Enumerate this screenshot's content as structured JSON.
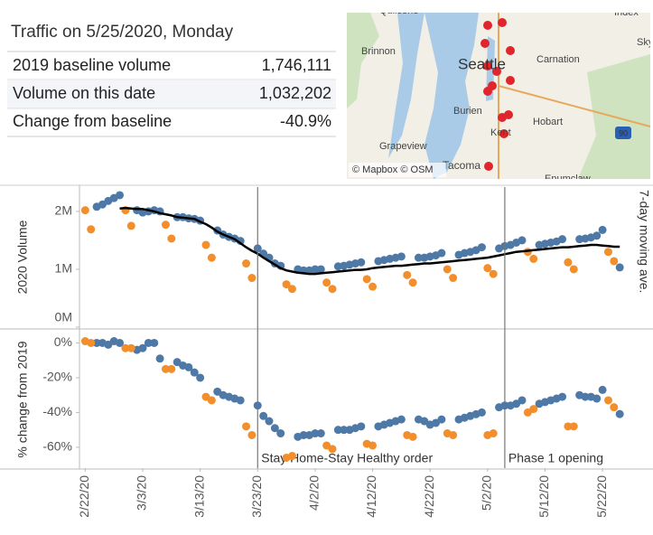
{
  "title": "Traffic on 5/25/2020, Monday",
  "table": {
    "rows": [
      [
        "2019 baseline volume",
        "1,746,111"
      ],
      [
        "Volume on this date",
        "1,032,202"
      ],
      [
        "Change from baseline",
        "-40.9%"
      ]
    ]
  },
  "map": {
    "labels": [
      "Quilcene",
      "Brinnon",
      "Seattle",
      "Carnation",
      "Burien",
      "Hobart",
      "Kent",
      "Grapeview",
      "Tacoma",
      "Enumclaw",
      "Index",
      "Sky",
      "90"
    ],
    "attribution": "© Mapbox © OSM"
  },
  "chart_data": [
    {
      "type": "line",
      "y_label": "2020 Volume",
      "x": [
        "2/22/20",
        "2/23/20",
        "2/24/20",
        "2/25/20",
        "2/26/20",
        "2/27/20",
        "2/28/20",
        "2/29/20",
        "3/1/20",
        "3/2/20",
        "3/3/20",
        "3/4/20",
        "3/5/20",
        "3/6/20",
        "3/7/20",
        "3/8/20",
        "3/9/20",
        "3/10/20",
        "3/11/20",
        "3/12/20",
        "3/13/20",
        "3/14/20",
        "3/15/20",
        "3/16/20",
        "3/17/20",
        "3/18/20",
        "3/19/20",
        "3/20/20",
        "3/21/20",
        "3/22/20",
        "3/23/20",
        "3/24/20",
        "3/25/20",
        "3/26/20",
        "3/27/20",
        "3/28/20",
        "3/29/20",
        "3/30/20",
        "3/31/20",
        "4/1/20",
        "4/2/20",
        "4/3/20",
        "4/4/20",
        "4/5/20",
        "4/6/20",
        "4/7/20",
        "4/8/20",
        "4/9/20",
        "4/10/20",
        "4/11/20",
        "4/12/20",
        "4/13/20",
        "4/14/20",
        "4/15/20",
        "4/16/20",
        "4/17/20",
        "4/18/20",
        "4/19/20",
        "4/20/20",
        "4/21/20",
        "4/22/20",
        "4/23/20",
        "4/24/20",
        "4/25/20",
        "4/26/20",
        "4/27/20",
        "4/28/20",
        "4/29/20",
        "4/30/20",
        "5/1/20",
        "5/2/20",
        "5/3/20",
        "5/4/20",
        "5/5/20",
        "5/6/20",
        "5/7/20",
        "5/8/20",
        "5/9/20",
        "5/10/20",
        "5/11/20",
        "5/12/20",
        "5/13/20",
        "5/14/20",
        "5/15/20",
        "5/16/20",
        "5/17/20",
        "5/18/20",
        "5/19/20",
        "5/20/20",
        "5/21/20",
        "5/22/20",
        "5/23/20",
        "5/24/20",
        "5/25/20"
      ],
      "xlim": [
        "2/21/20",
        "5/30/20"
      ],
      "ylim": [
        0,
        2420000
      ],
      "yticks": [
        {
          "value": 0,
          "label": "0M"
        },
        {
          "value": 1000000,
          "label": "1M"
        },
        {
          "value": 2000000,
          "label": "2M"
        }
      ],
      "grid": false,
      "series": [
        {
          "style": "dots",
          "color": "#4e79a7",
          "values": [
            null,
            null,
            2080000,
            2120000,
            2180000,
            2230000,
            2280000,
            null,
            null,
            2020000,
            1980000,
            2000000,
            2020000,
            2000000,
            null,
            null,
            1900000,
            1900000,
            1880000,
            1870000,
            1840000,
            null,
            null,
            1670000,
            1600000,
            1560000,
            1530000,
            1490000,
            null,
            null,
            1360000,
            1270000,
            1200000,
            1100000,
            1060000,
            null,
            null,
            1000000,
            980000,
            980000,
            1000000,
            1000000,
            null,
            null,
            1050000,
            1060000,
            1080000,
            1100000,
            1120000,
            null,
            null,
            1140000,
            1160000,
            1180000,
            1200000,
            1220000,
            null,
            null,
            1200000,
            1200000,
            1220000,
            1240000,
            1280000,
            null,
            null,
            1250000,
            1280000,
            1300000,
            1330000,
            1380000,
            null,
            null,
            1360000,
            1400000,
            1420000,
            1460000,
            1500000,
            null,
            null,
            1420000,
            1440000,
            1460000,
            1480000,
            1520000,
            null,
            null,
            1520000,
            1530000,
            1550000,
            1580000,
            1680000,
            null,
            null,
            1032202
          ]
        },
        {
          "style": "dots",
          "color": "#f28e2b",
          "values": [
            2020000,
            1690000,
            null,
            null,
            null,
            null,
            null,
            2020000,
            1750000,
            null,
            null,
            null,
            null,
            null,
            1770000,
            1530000,
            null,
            null,
            null,
            null,
            null,
            1420000,
            1200000,
            null,
            null,
            null,
            null,
            null,
            1100000,
            850000,
            null,
            null,
            null,
            null,
            null,
            740000,
            660000,
            null,
            null,
            null,
            null,
            null,
            770000,
            660000,
            null,
            null,
            null,
            null,
            null,
            830000,
            700000,
            null,
            null,
            null,
            null,
            null,
            900000,
            770000,
            null,
            null,
            null,
            null,
            null,
            1000000,
            850000,
            null,
            null,
            null,
            null,
            null,
            1020000,
            920000,
            null,
            null,
            null,
            null,
            null,
            1300000,
            1180000,
            null,
            null,
            null,
            null,
            null,
            1120000,
            1000000,
            null,
            null,
            null,
            null,
            null,
            1300000,
            1140000,
            null
          ]
        },
        {
          "style": "line",
          "name": "7-day moving ave.",
          "color": "#000000",
          "values": [
            null,
            null,
            null,
            null,
            null,
            null,
            2050000,
            2060000,
            2050000,
            2040000,
            2040000,
            2020000,
            2000000,
            1970000,
            1950000,
            1930000,
            1900000,
            1890000,
            1880000,
            1870000,
            1820000,
            1780000,
            1720000,
            1650000,
            1600000,
            1560000,
            1520000,
            1450000,
            1380000,
            1320000,
            1270000,
            1200000,
            1140000,
            1080000,
            1020000,
            980000,
            960000,
            940000,
            930000,
            920000,
            920000,
            930000,
            940000,
            950000,
            960000,
            970000,
            980000,
            990000,
            990000,
            1000000,
            1020000,
            1030000,
            1040000,
            1050000,
            1060000,
            1060000,
            1070000,
            1080000,
            1090000,
            1100000,
            1100000,
            1110000,
            1120000,
            1130000,
            1140000,
            1150000,
            1160000,
            1170000,
            1180000,
            1190000,
            1200000,
            1220000,
            1240000,
            1260000,
            1280000,
            1300000,
            1310000,
            1320000,
            1330000,
            1340000,
            1350000,
            1360000,
            1370000,
            1380000,
            1380000,
            1390000,
            1400000,
            1410000,
            1420000,
            1420000,
            1410000,
            1400000,
            1390000,
            1390000
          ]
        }
      ]
    },
    {
      "type": "scatter",
      "y_label": "% change from 2019",
      "x": [
        "2/22/20",
        "2/23/20",
        "2/24/20",
        "2/25/20",
        "2/26/20",
        "2/27/20",
        "2/28/20",
        "2/29/20",
        "3/1/20",
        "3/2/20",
        "3/3/20",
        "3/4/20",
        "3/5/20",
        "3/6/20",
        "3/7/20",
        "3/8/20",
        "3/9/20",
        "3/10/20",
        "3/11/20",
        "3/12/20",
        "3/13/20",
        "3/14/20",
        "3/15/20",
        "3/16/20",
        "3/17/20",
        "3/18/20",
        "3/19/20",
        "3/20/20",
        "3/21/20",
        "3/22/20",
        "3/23/20",
        "3/24/20",
        "3/25/20",
        "3/26/20",
        "3/27/20",
        "3/28/20",
        "3/29/20",
        "3/30/20",
        "3/31/20",
        "4/1/20",
        "4/2/20",
        "4/3/20",
        "4/4/20",
        "4/5/20",
        "4/6/20",
        "4/7/20",
        "4/8/20",
        "4/9/20",
        "4/10/20",
        "4/11/20",
        "4/12/20",
        "4/13/20",
        "4/14/20",
        "4/15/20",
        "4/16/20",
        "4/17/20",
        "4/18/20",
        "4/19/20",
        "4/20/20",
        "4/21/20",
        "4/22/20",
        "4/23/20",
        "4/24/20",
        "4/25/20",
        "4/26/20",
        "4/27/20",
        "4/28/20",
        "4/29/20",
        "4/30/20",
        "5/1/20",
        "5/2/20",
        "5/3/20",
        "5/4/20",
        "5/5/20",
        "5/6/20",
        "5/7/20",
        "5/8/20",
        "5/9/20",
        "5/10/20",
        "5/11/20",
        "5/12/20",
        "5/13/20",
        "5/14/20",
        "5/15/20",
        "5/16/20",
        "5/17/20",
        "5/18/20",
        "5/19/20",
        "5/20/20",
        "5/21/20",
        "5/22/20",
        "5/23/20",
        "5/24/20",
        "5/25/20"
      ],
      "xlim": [
        "2/21/20",
        "5/30/20"
      ],
      "xticks": [
        "2/22/20",
        "3/3/20",
        "3/13/20",
        "3/23/20",
        "4/2/20",
        "4/12/20",
        "4/22/20",
        "5/2/20",
        "5/12/20",
        "5/22/20"
      ],
      "ylim": [
        -72,
        7
      ],
      "yticks": [
        {
          "value": -60,
          "label": "-60%"
        },
        {
          "value": -40,
          "label": "-40%"
        },
        {
          "value": -20,
          "label": "-20%"
        },
        {
          "value": 0,
          "label": "0%"
        }
      ],
      "grid": false,
      "annotations": [
        {
          "x": "3/23/20",
          "text": "Stay Home-Stay Healthy order"
        },
        {
          "x": "5/5/20",
          "text": "Phase 1 opening"
        }
      ],
      "series": [
        {
          "style": "dots",
          "color": "#4e79a7",
          "values": [
            null,
            null,
            0,
            0,
            -1,
            1,
            0,
            null,
            null,
            -4,
            -3,
            0,
            0,
            -9,
            null,
            null,
            -11,
            -13,
            -14,
            -17,
            -20,
            null,
            null,
            -28,
            -30,
            -31,
            -32,
            -33,
            null,
            null,
            -36,
            -42,
            -45,
            -49,
            -52,
            null,
            null,
            -54,
            -53,
            -53,
            -52,
            -52,
            null,
            null,
            -50,
            -50,
            -50,
            -49,
            -48,
            null,
            null,
            -48,
            -47,
            -46,
            -45,
            -44,
            null,
            null,
            -44,
            -45,
            -47,
            -46,
            -44,
            null,
            null,
            -44,
            -43,
            -42,
            -41,
            -40,
            null,
            null,
            -37,
            -36,
            -36,
            -35,
            -33,
            null,
            null,
            -35,
            -34,
            -33,
            -32,
            -31,
            null,
            null,
            -30,
            -31,
            -31,
            -32,
            -27,
            null,
            null,
            -40.9
          ]
        },
        {
          "style": "dots",
          "color": "#f28e2b",
          "values": [
            1,
            0,
            null,
            null,
            null,
            null,
            null,
            -3,
            -3,
            null,
            null,
            null,
            null,
            null,
            -15,
            -15,
            null,
            null,
            null,
            null,
            null,
            -31,
            -33,
            null,
            null,
            null,
            null,
            null,
            -48,
            -53,
            null,
            null,
            null,
            null,
            null,
            -66,
            -65,
            null,
            null,
            null,
            null,
            null,
            -59,
            -61,
            null,
            null,
            null,
            null,
            null,
            -58,
            -59,
            null,
            null,
            null,
            null,
            null,
            -53,
            -54,
            null,
            null,
            null,
            null,
            null,
            -52,
            -53,
            null,
            null,
            null,
            null,
            null,
            -53,
            -52,
            null,
            null,
            null,
            null,
            null,
            -40,
            -38,
            null,
            null,
            null,
            null,
            null,
            -48,
            -48,
            null,
            null,
            null,
            null,
            null,
            -33,
            -37,
            null
          ]
        }
      ]
    }
  ]
}
